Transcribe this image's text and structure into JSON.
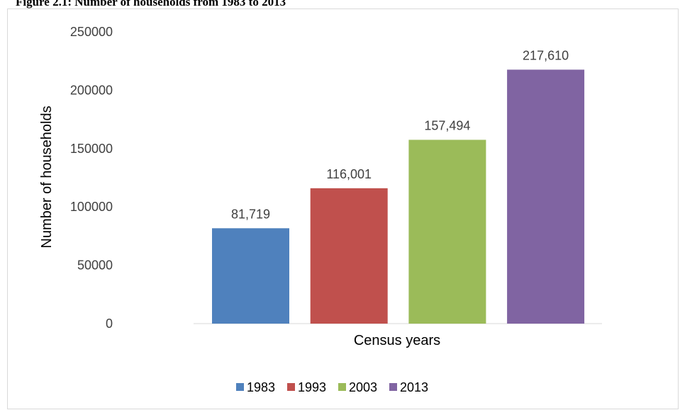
{
  "figure": {
    "caption": "Figure 2.1: Number of households from 1983 to 2013"
  },
  "chart_data": {
    "type": "bar",
    "title": "",
    "xlabel": "Census years",
    "ylabel": "Number of households",
    "ylim": [
      0,
      250000
    ],
    "yticks": [
      0,
      50000,
      100000,
      150000,
      200000,
      250000
    ],
    "ytick_labels": [
      "0",
      "50000",
      "100000",
      "150000",
      "200000",
      "250000"
    ],
    "grid": false,
    "legend_position": "bottom",
    "series": [
      {
        "name": "1983",
        "value": 81719,
        "label": "81,719",
        "color": "#4f81bd"
      },
      {
        "name": "1993",
        "value": 116001,
        "label": "116,001",
        "color": "#c0504d"
      },
      {
        "name": "2003",
        "value": 157494,
        "label": "157,494",
        "color": "#9bbb59"
      },
      {
        "name": "2013",
        "value": 217610,
        "label": "217,610",
        "color": "#8064a2"
      }
    ]
  }
}
